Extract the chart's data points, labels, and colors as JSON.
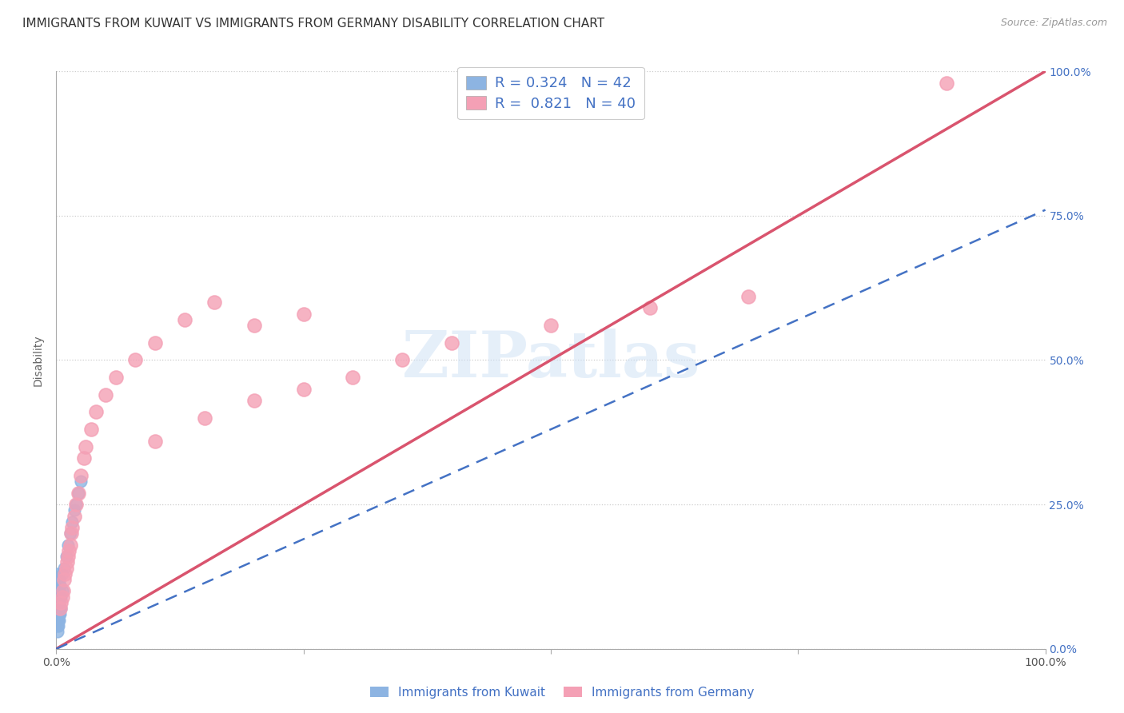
{
  "title": "IMMIGRANTS FROM KUWAIT VS IMMIGRANTS FROM GERMANY DISABILITY CORRELATION CHART",
  "source": "Source: ZipAtlas.com",
  "ylabel": "Disability",
  "xlim": [
    0,
    1.0
  ],
  "ylim": [
    0,
    1.0
  ],
  "kuwait_R": 0.324,
  "kuwait_N": 42,
  "germany_R": 0.821,
  "germany_N": 40,
  "kuwait_color": "#8db4e2",
  "germany_color": "#f4a0b5",
  "kuwait_line_color": "#4472c4",
  "germany_line_color": "#d9546e",
  "watermark": "ZIPatlas",
  "kuwait_x": [
    0.001,
    0.001,
    0.001,
    0.001,
    0.001,
    0.001,
    0.001,
    0.001,
    0.001,
    0.001,
    0.002,
    0.002,
    0.002,
    0.002,
    0.002,
    0.002,
    0.002,
    0.002,
    0.002,
    0.003,
    0.003,
    0.003,
    0.003,
    0.003,
    0.003,
    0.004,
    0.004,
    0.004,
    0.004,
    0.005,
    0.005,
    0.006,
    0.006,
    0.008,
    0.01,
    0.012,
    0.014,
    0.016,
    0.018,
    0.02,
    0.022,
    0.025
  ],
  "kuwait_y": [
    0.03,
    0.04,
    0.05,
    0.06,
    0.07,
    0.08,
    0.09,
    0.1,
    0.11,
    0.13,
    0.04,
    0.05,
    0.06,
    0.07,
    0.08,
    0.09,
    0.1,
    0.11,
    0.12,
    0.05,
    0.06,
    0.07,
    0.08,
    0.1,
    0.12,
    0.06,
    0.07,
    0.09,
    0.11,
    0.07,
    0.09,
    0.1,
    0.13,
    0.14,
    0.16,
    0.18,
    0.2,
    0.22,
    0.24,
    0.25,
    0.27,
    0.29
  ],
  "germany_x": [
    0.004,
    0.005,
    0.006,
    0.007,
    0.008,
    0.009,
    0.01,
    0.011,
    0.012,
    0.013,
    0.014,
    0.015,
    0.016,
    0.018,
    0.02,
    0.022,
    0.025,
    0.028,
    0.03,
    0.035,
    0.04,
    0.05,
    0.06,
    0.08,
    0.1,
    0.13,
    0.16,
    0.2,
    0.25,
    0.1,
    0.15,
    0.2,
    0.25,
    0.3,
    0.35,
    0.4,
    0.5,
    0.6,
    0.7,
    0.9
  ],
  "germany_y": [
    0.07,
    0.08,
    0.09,
    0.1,
    0.12,
    0.13,
    0.14,
    0.15,
    0.16,
    0.17,
    0.18,
    0.2,
    0.21,
    0.23,
    0.25,
    0.27,
    0.3,
    0.33,
    0.35,
    0.38,
    0.41,
    0.44,
    0.47,
    0.5,
    0.53,
    0.57,
    0.6,
    0.56,
    0.58,
    0.36,
    0.4,
    0.43,
    0.45,
    0.47,
    0.5,
    0.53,
    0.56,
    0.59,
    0.61,
    0.98
  ],
  "grid_color": "#cccccc",
  "background_color": "#ffffff",
  "title_fontsize": 11,
  "label_fontsize": 10,
  "tick_fontsize": 10,
  "legend_fontsize": 13
}
